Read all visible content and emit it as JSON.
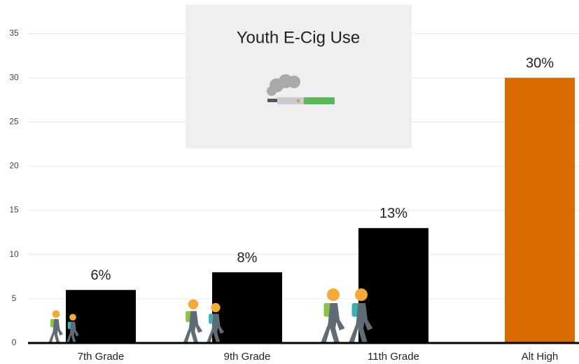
{
  "chart_data": {
    "type": "bar",
    "title": "Youth E-Cig Use",
    "categories": [
      "7th Grade",
      "9th Grade",
      "11th Grade",
      "Alt High"
    ],
    "values": [
      6,
      8,
      13,
      30
    ],
    "value_labels": [
      "6%",
      "8%",
      "13%",
      "30%"
    ],
    "colors": [
      "#000000",
      "#000000",
      "#000000",
      "#d96b00"
    ],
    "ylim": [
      0,
      35
    ],
    "yticks": [
      0,
      5,
      10,
      15,
      20,
      25,
      30,
      35
    ],
    "grid": true
  }
}
